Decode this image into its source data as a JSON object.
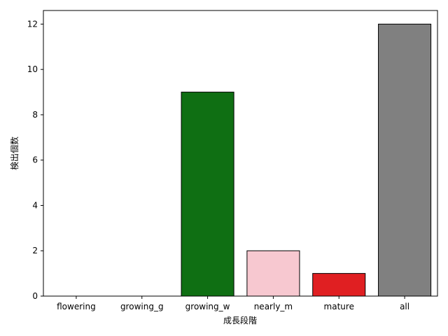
{
  "chart_data": {
    "type": "bar",
    "title": "",
    "xlabel": "成長段階",
    "ylabel": "検出個数",
    "categories": [
      "flowering",
      "growing_g",
      "growing_w",
      "nearly_m",
      "mature",
      "all"
    ],
    "values": [
      0,
      0,
      9,
      2,
      1,
      12
    ],
    "colors": [
      "#1f77b4",
      "#2ca02c",
      "#0f6f13",
      "#f7c8d0",
      "#e01f22",
      "#808080"
    ],
    "bar_edge_color": "#000000",
    "ylim": [
      0,
      12.6
    ],
    "yticks": [
      0,
      2,
      4,
      6,
      8,
      10,
      12
    ],
    "grid": false,
    "legend": "none"
  }
}
